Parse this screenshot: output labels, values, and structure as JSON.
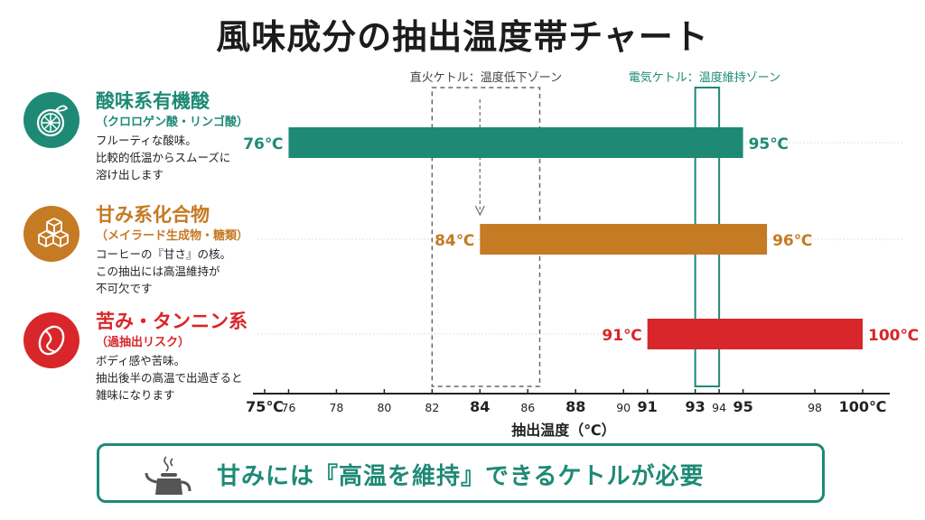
{
  "title": "風味成分の抽出温度帯チャート",
  "categories": [
    {
      "name": "酸味系有機酸",
      "sub": "（クロロゲン酸・リンゴ酸）",
      "desc": "フルーティな酸味。\n比較的低温からスムーズに\n溶け出します",
      "icon": "citrus-icon",
      "color": "#1e8a76"
    },
    {
      "name": "甘み系化合物",
      "sub": "（メイラード生成物・糖類）",
      "desc": "コーヒーの『甘さ』の核。\nこの抽出には高温維持が\n不可欠です",
      "icon": "sugar-cubes-icon",
      "color": "#c57a24"
    },
    {
      "name": "苦み・タンニン系",
      "sub": "（過抽出リスク）",
      "desc": "ボディ感や苦味。\n抽出後半の高温で出過ぎると\n雑味になります",
      "icon": "coffee-bean-icon",
      "color": "#d8262a"
    }
  ],
  "chart_data": {
    "type": "bar",
    "orientation": "horizontal-range",
    "xlabel": "抽出温度（℃）",
    "xlim": [
      75,
      100
    ],
    "x_ticks": [
      {
        "value": 75,
        "label": "75℃",
        "bold": true
      },
      {
        "value": 76,
        "label": "76",
        "bold": false
      },
      {
        "value": 78,
        "label": "78",
        "bold": false
      },
      {
        "value": 80,
        "label": "80",
        "bold": false
      },
      {
        "value": 82,
        "label": "82",
        "bold": false
      },
      {
        "value": 84,
        "label": "84",
        "bold": true
      },
      {
        "value": 86,
        "label": "86",
        "bold": false
      },
      {
        "value": 88,
        "label": "88",
        "bold": true
      },
      {
        "value": 90,
        "label": "90",
        "bold": false
      },
      {
        "value": 91,
        "label": "91",
        "bold": true
      },
      {
        "value": 93,
        "label": "93",
        "bold": true
      },
      {
        "value": 94,
        "label": "94",
        "bold": false
      },
      {
        "value": 95,
        "label": "95",
        "bold": true
      },
      {
        "value": 98,
        "label": "98",
        "bold": false
      },
      {
        "value": 100,
        "label": "100℃",
        "bold": true
      }
    ],
    "series": [
      {
        "name": "酸味系有機酸",
        "start": 76,
        "end": 95,
        "start_label": "76℃",
        "end_label": "95℃",
        "color": "#1e8a76"
      },
      {
        "name": "甘み系化合物",
        "start": 84,
        "end": 96,
        "start_label": "84℃",
        "end_label": "96℃",
        "color": "#c57a24"
      },
      {
        "name": "苦み・タンニン系",
        "start": 91,
        "end": 100,
        "start_label": "91℃",
        "end_label": "100℃",
        "color": "#d8262a"
      }
    ],
    "zones": [
      {
        "label": "直火ケトル：温度低下ゾーン",
        "start": 82,
        "end": 86.5,
        "style": "dashed",
        "color": "#666666",
        "arrow_at": 84
      },
      {
        "label": "電気ケトル：温度維持ゾーン",
        "start": 93,
        "end": 94,
        "style": "solid",
        "color": "#1e8a76"
      }
    ],
    "grid": true
  },
  "banner": {
    "text": "甘みには『高温を維持』できるケトルが必要",
    "icon": "kettle-icon"
  }
}
